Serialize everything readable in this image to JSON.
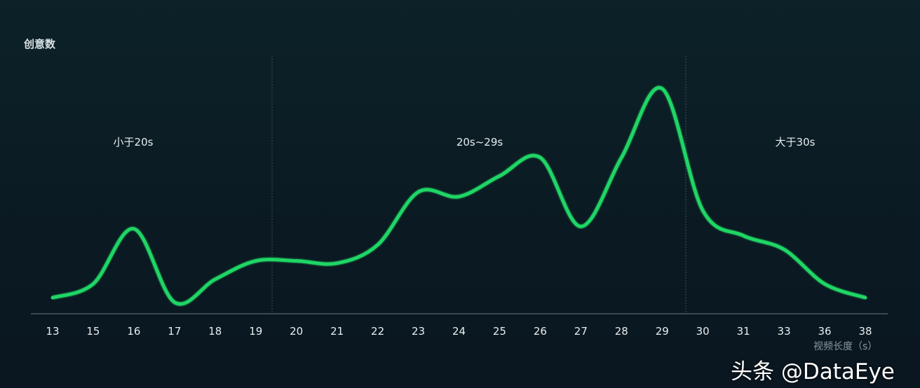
{
  "chart_data": {
    "type": "line",
    "ylabel": "创意数",
    "xlabel": "视频长度（s）",
    "categories": [
      "13",
      "15",
      "16",
      "17",
      "18",
      "19",
      "20",
      "21",
      "22",
      "23",
      "24",
      "25",
      "26",
      "27",
      "28",
      "29",
      "30",
      "31",
      "33",
      "36",
      "38"
    ],
    "series": [
      {
        "values": [
          7,
          13,
          37,
          5,
          15,
          23,
          23,
          22,
          30,
          53,
          51,
          60,
          68,
          38,
          68,
          98,
          45,
          34,
          28,
          13,
          7
        ]
      }
    ],
    "y_axis_ticks_shown": false,
    "ylim": [
      0,
      100
    ],
    "grid": false,
    "regions": [
      {
        "label": "小于20s"
      },
      {
        "label": "20s~29s"
      },
      {
        "label": "大于30s"
      }
    ],
    "line_color": "#1fd665"
  },
  "watermark": "头条 @DataEye"
}
